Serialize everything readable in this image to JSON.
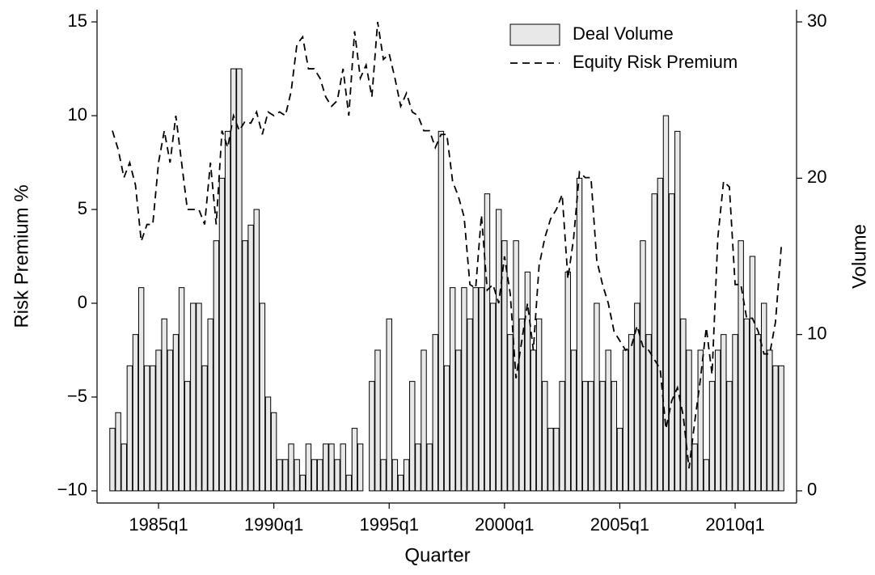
{
  "chart_data": {
    "type": "combo",
    "x_label": "Quarter",
    "y_label": "Risk Premium %",
    "y2_label": "Volume",
    "categories": [
      null,
      null,
      null,
      null,
      null,
      null,
      null,
      null,
      "1985q1",
      null,
      null,
      null,
      null,
      null,
      null,
      null,
      null,
      null,
      null,
      null,
      null,
      null,
      null,
      null,
      null,
      null,
      null,
      null,
      "1990q1",
      null,
      null,
      null,
      null,
      null,
      null,
      null,
      null,
      null,
      null,
      null,
      null,
      null,
      null,
      null,
      null,
      null,
      null,
      null,
      "1995q1",
      null,
      null,
      null,
      null,
      null,
      null,
      null,
      null,
      null,
      null,
      null,
      null,
      null,
      null,
      null,
      null,
      null,
      null,
      null,
      "2000q1",
      null,
      null,
      null,
      null,
      null,
      null,
      null,
      null,
      null,
      null,
      null,
      null,
      null,
      null,
      null,
      null,
      null,
      null,
      null,
      "2005q1",
      null,
      null,
      null,
      null,
      null,
      null,
      null,
      null,
      null,
      null,
      null,
      null,
      null,
      null,
      null,
      null,
      null,
      null,
      null,
      "2010q1",
      null,
      null,
      null,
      null,
      null,
      null,
      null,
      null
    ],
    "series": [
      {
        "name": "Deal Volume",
        "type": "bar",
        "axis": "y2",
        "color": "#e8e8e8",
        "values": [
          4,
          5,
          3,
          8,
          10,
          13,
          8,
          8,
          9,
          11,
          9,
          10,
          13,
          7,
          12,
          12,
          8,
          11,
          16,
          20,
          23,
          27,
          27,
          16,
          17,
          18,
          12,
          6,
          5,
          2,
          2,
          3,
          2,
          1,
          3,
          2,
          2,
          3,
          3,
          2,
          3,
          1,
          4,
          3,
          0,
          7,
          9,
          2,
          11,
          2,
          1,
          2,
          7,
          3,
          9,
          3,
          10,
          23,
          8,
          13,
          9,
          13,
          11,
          13,
          13,
          19,
          12,
          18,
          16,
          10,
          16,
          11,
          14,
          9,
          11,
          7,
          4,
          4,
          7,
          14,
          9,
          20,
          7,
          7,
          12,
          7,
          9,
          7,
          4,
          9,
          10,
          12,
          16,
          10,
          19,
          20,
          24,
          19,
          23,
          11,
          9,
          3,
          9,
          2,
          7,
          9,
          10,
          7,
          10,
          16,
          11,
          15,
          10,
          12,
          9,
          8,
          8
        ]
      },
      {
        "name": "Equity Risk Premium",
        "type": "line",
        "axis": "y",
        "color": "#000000",
        "values": [
          9.2,
          8.2,
          6.7,
          7.5,
          6.3,
          3.3,
          4.2,
          4.2,
          7.5,
          9.2,
          7.5,
          10.0,
          7.5,
          5.0,
          5.0,
          5.0,
          4.2,
          7.5,
          4.2,
          9.2,
          8.3,
          10.0,
          9.2,
          9.7,
          9.6,
          10.2,
          9.0,
          10.2,
          10.0,
          10.2,
          10.0,
          11.3,
          13.8,
          14.2,
          12.5,
          12.5,
          12.0,
          11.0,
          10.5,
          10.8,
          12.5,
          10.0,
          14.5,
          12.0,
          12.7,
          11.0,
          15.0,
          13.0,
          13.3,
          12.0,
          10.5,
          11.2,
          10.2,
          10.0,
          9.2,
          9.2,
          8.3,
          9.0,
          9.0,
          6.5,
          5.7,
          4.6,
          1.0,
          0.8,
          4.7,
          0.7,
          1.0,
          0.0,
          2.5,
          0.5,
          -4.0,
          -2.0,
          0.0,
          -2.5,
          2.0,
          3.5,
          4.5,
          5.0,
          5.8,
          1.3,
          3.5,
          7.0,
          6.7,
          6.7,
          2.3,
          1.0,
          0.0,
          -1.5,
          -2.0,
          -2.5,
          -2.3,
          -1.2,
          -2.3,
          -2.5,
          -3.0,
          -3.5,
          -6.7,
          -5.2,
          -4.5,
          -6.0,
          -8.8,
          -6.3,
          -4.0,
          -1.3,
          -3.8,
          3.5,
          6.5,
          6.2,
          1.0,
          1.0,
          -0.8,
          -0.8,
          -1.5,
          -2.7,
          -2.7,
          -1.0,
          3.0
        ]
      }
    ],
    "ylim": [
      -10.65,
      15.65
    ],
    "yticks": [
      {
        "value": -10,
        "label": "−10"
      },
      {
        "value": -5,
        "label": "−5"
      },
      0,
      5,
      10,
      15
    ],
    "y2lim": [
      -0.78,
      30.78
    ],
    "y2ticks": [
      0,
      10,
      20,
      30
    ],
    "grid": false,
    "legend": "top-right"
  }
}
